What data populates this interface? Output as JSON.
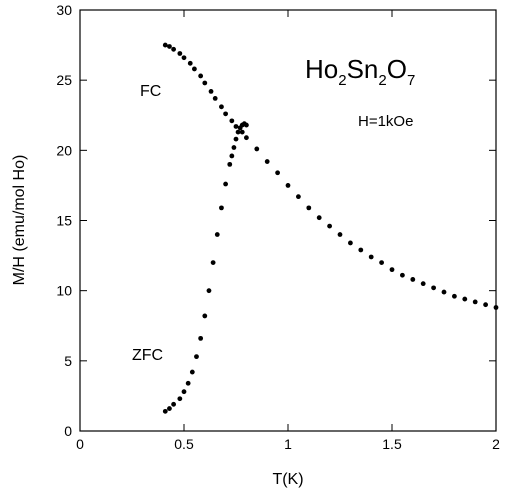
{
  "chart_data": {
    "type": "scatter",
    "title": "",
    "xlabel": "T(K)",
    "ylabel": "M/H (emu/mol Ho)",
    "xlim": [
      0,
      2
    ],
    "ylim": [
      0,
      30
    ],
    "xticks": [
      0,
      0.5,
      1,
      1.5,
      2
    ],
    "xtick_labels": [
      "0",
      "0.5",
      "1",
      "1.5",
      "2"
    ],
    "yticks": [
      0,
      5,
      10,
      15,
      20,
      25,
      30
    ],
    "ytick_labels": [
      "0",
      "5",
      "10",
      "15",
      "20",
      "25",
      "30"
    ],
    "grid": false,
    "annotations": {
      "compound": {
        "base": "Ho",
        "sub1": "2",
        "mid": "Sn",
        "sub2": "2",
        "end": "O",
        "sub3": "7"
      },
      "field": "H=1kOe",
      "fc_label": "FC",
      "zfc_label": "ZFC"
    },
    "series": [
      {
        "name": "FC",
        "x": [
          0.41,
          0.43,
          0.45,
          0.48,
          0.5,
          0.53,
          0.55,
          0.58,
          0.6,
          0.63,
          0.65,
          0.68,
          0.7,
          0.73,
          0.75,
          0.78,
          0.8,
          0.85,
          0.9,
          0.95,
          1.0,
          1.05,
          1.1,
          1.15,
          1.2,
          1.25,
          1.3,
          1.35,
          1.4,
          1.45,
          1.5,
          1.55,
          1.6,
          1.65,
          1.7,
          1.75,
          1.8,
          1.85,
          1.9,
          1.95,
          2.0
        ],
        "y": [
          27.5,
          27.4,
          27.2,
          26.9,
          26.6,
          26.2,
          25.8,
          25.3,
          24.8,
          24.2,
          23.7,
          23.1,
          22.6,
          22.1,
          21.7,
          21.3,
          20.9,
          20.1,
          19.2,
          18.4,
          17.5,
          16.7,
          15.9,
          15.2,
          14.6,
          14.0,
          13.4,
          12.9,
          12.4,
          12.0,
          11.5,
          11.1,
          10.8,
          10.5,
          10.2,
          9.9,
          9.6,
          9.4,
          9.2,
          9.0,
          8.8
        ]
      },
      {
        "name": "ZFC",
        "x": [
          0.41,
          0.43,
          0.45,
          0.48,
          0.5,
          0.52,
          0.54,
          0.56,
          0.58,
          0.6,
          0.62,
          0.64,
          0.66,
          0.68,
          0.7,
          0.72,
          0.73,
          0.74,
          0.75,
          0.76,
          0.77,
          0.78,
          0.79,
          0.8
        ],
        "y": [
          1.4,
          1.6,
          1.9,
          2.3,
          2.8,
          3.4,
          4.2,
          5.3,
          6.6,
          8.2,
          10.0,
          12.0,
          14.0,
          15.9,
          17.6,
          19.0,
          19.6,
          20.2,
          20.8,
          21.3,
          21.6,
          21.8,
          21.9,
          21.8
        ]
      }
    ]
  }
}
